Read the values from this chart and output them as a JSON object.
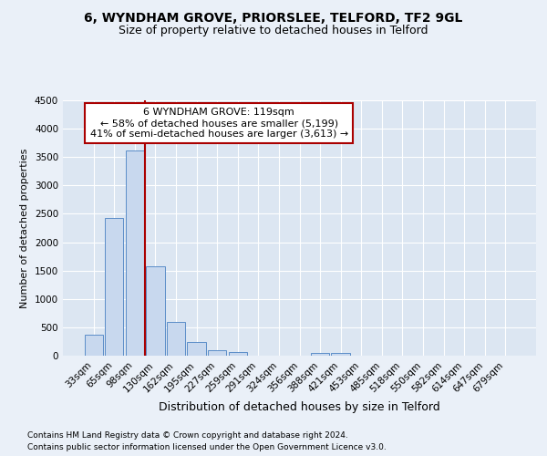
{
  "title1": "6, WYNDHAM GROVE, PRIORSLEE, TELFORD, TF2 9GL",
  "title2": "Size of property relative to detached houses in Telford",
  "xlabel": "Distribution of detached houses by size in Telford",
  "ylabel": "Number of detached properties",
  "categories": [
    "33sqm",
    "65sqm",
    "98sqm",
    "130sqm",
    "162sqm",
    "195sqm",
    "227sqm",
    "259sqm",
    "291sqm",
    "324sqm",
    "356sqm",
    "388sqm",
    "421sqm",
    "453sqm",
    "485sqm",
    "518sqm",
    "550sqm",
    "582sqm",
    "614sqm",
    "647sqm",
    "679sqm"
  ],
  "values": [
    370,
    2420,
    3610,
    1580,
    600,
    240,
    100,
    60,
    0,
    0,
    0,
    55,
    55,
    0,
    0,
    0,
    0,
    0,
    0,
    0,
    0
  ],
  "bar_color": "#c8d8ee",
  "bar_edge_color": "#5b8dc8",
  "vline_color": "#aa0000",
  "vline_x": 2.5,
  "annotation_text": "6 WYNDHAM GROVE: 119sqm\n← 58% of detached houses are smaller (5,199)\n41% of semi-detached houses are larger (3,613) →",
  "annotation_box_color": "#ffffff",
  "annotation_box_edge": "#aa0000",
  "ylim": [
    0,
    4500
  ],
  "yticks": [
    0,
    500,
    1000,
    1500,
    2000,
    2500,
    3000,
    3500,
    4000,
    4500
  ],
  "footnote1": "Contains HM Land Registry data © Crown copyright and database right 2024.",
  "footnote2": "Contains public sector information licensed under the Open Government Licence v3.0.",
  "background_color": "#eaf0f8",
  "plot_bg_color": "#dce6f2",
  "grid_color": "#ffffff",
  "title1_fontsize": 10,
  "title2_fontsize": 9,
  "tick_fontsize": 7.5,
  "ylabel_fontsize": 8,
  "xlabel_fontsize": 9,
  "footnote_fontsize": 6.5
}
